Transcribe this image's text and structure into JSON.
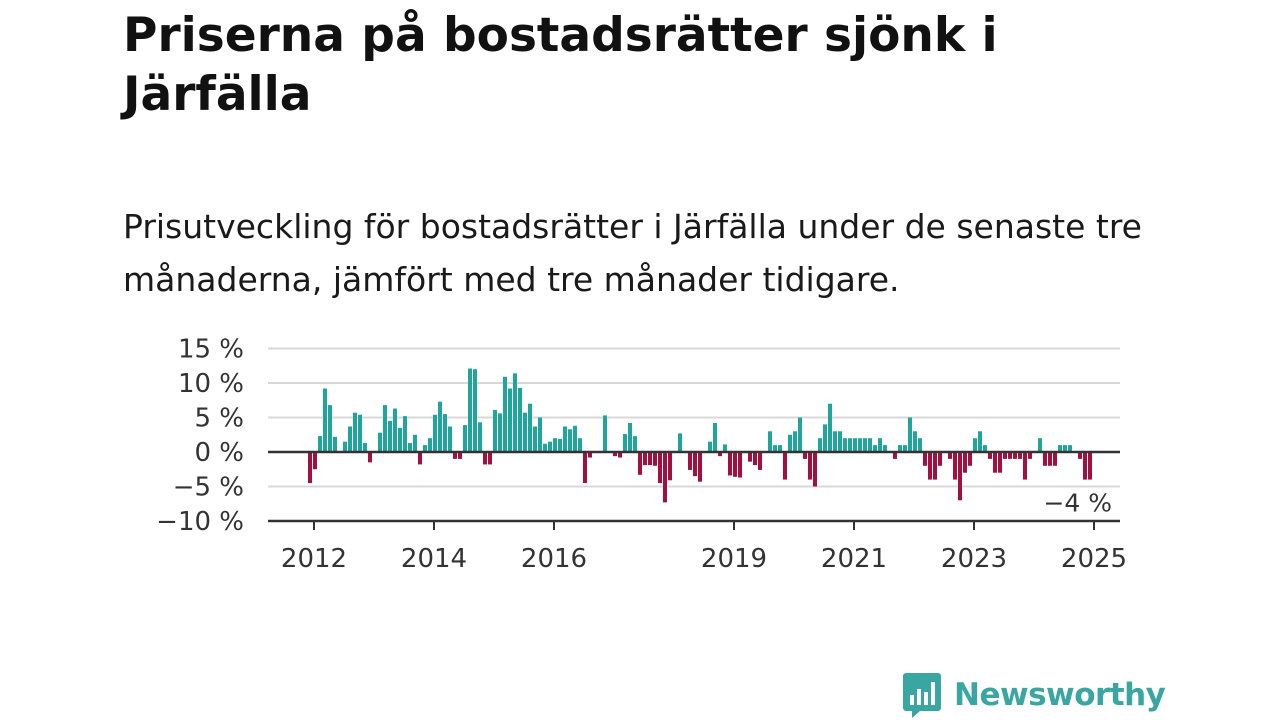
{
  "title": "Priserna på bostadsrätter sjönk i Järfälla",
  "subtitle": "Prisutveckling för bostadsrätter i Järfälla under de senaste tre månaderna, jämfört med tre månader tidigare.",
  "logo": {
    "text": "Newsworthy",
    "icon": "newsworthy-chart-bubble-icon"
  },
  "colors": {
    "positive": "#1fa59c",
    "negative": "#a3103f",
    "grid": "#d8d8d8",
    "zero_line": "#333333",
    "logo": "#3aa6a2"
  },
  "chart_data": {
    "type": "bar",
    "x_start": "2011-12",
    "frequency": "monthly",
    "ylim": [
      -10,
      15
    ],
    "y_ticks": [
      15,
      10,
      5,
      0,
      -5,
      -10
    ],
    "y_tick_labels": [
      "15 %",
      "10 %",
      "5 %",
      "0 %",
      "−5 %",
      "−10 %"
    ],
    "x_tick_labels": [
      "2012",
      "2014",
      "2016",
      "2019",
      "2021",
      "2023",
      "2025"
    ],
    "x_tick_dates": [
      "2012-01",
      "2014-01",
      "2016-01",
      "2019-01",
      "2021-01",
      "2023-01",
      "2025-01"
    ],
    "grid": true,
    "last_value_label": "−4 %",
    "values": [
      -4.5,
      -2.5,
      2.3,
      9.2,
      6.8,
      2.2,
      0,
      1.5,
      3.7,
      5.7,
      5.4,
      1.3,
      -1.5,
      0,
      2.8,
      6.8,
      4.5,
      6.3,
      3.5,
      5.2,
      1.3,
      2.5,
      -1.8,
      1.0,
      2.0,
      5.4,
      7.3,
      5.5,
      3.7,
      -1.0,
      -1.0,
      3.9,
      12.1,
      12.0,
      4.3,
      -1.8,
      -1.8,
      6.1,
      5.6,
      10.9,
      9.2,
      11.4,
      9.3,
      5.7,
      7.0,
      3.7,
      5.0,
      1.2,
      1.5,
      2.0,
      1.9,
      3.7,
      3.3,
      3.8,
      2.0,
      -4.5,
      -0.8,
      0,
      0,
      5.3,
      0,
      -0.6,
      -0.8,
      2.6,
      4.2,
      2.3,
      -3.3,
      -1.9,
      -1.9,
      -2.0,
      -4.5,
      -7.3,
      -4.1,
      0,
      2.7,
      0,
      -2.6,
      -3.5,
      -4.3,
      0,
      1.5,
      4.2,
      -0.6,
      1.1,
      -3.4,
      -3.6,
      -3.7,
      0,
      -1.4,
      -1.9,
      -2.6,
      0,
      3.0,
      1.0,
      1.0,
      -4.0,
      2.5,
      3.0,
      5.0,
      -1.0,
      -4.0,
      -5.0,
      2.0,
      4.0,
      7.0,
      3.0,
      3.0,
      2.0,
      2.0,
      2.0,
      2.0,
      2.0,
      2.0,
      1.0,
      2.0,
      1.0,
      0,
      -1.0,
      1.0,
      1.0,
      5.0,
      3.0,
      2.0,
      -2.0,
      -4.0,
      -4.0,
      -2.0,
      0,
      -1.0,
      -4.0,
      -7.0,
      -3.0,
      -2.0,
      2.0,
      3.0,
      1.0,
      -1.0,
      -3.0,
      -3.0,
      -1.0,
      -1.0,
      -1.0,
      -1.0,
      -4.0,
      -1.0,
      0,
      2.0,
      -2.0,
      -2.0,
      -2.0,
      1.0,
      1.0,
      1.0,
      0,
      -1.0,
      -4.0,
      -4.0
    ]
  }
}
